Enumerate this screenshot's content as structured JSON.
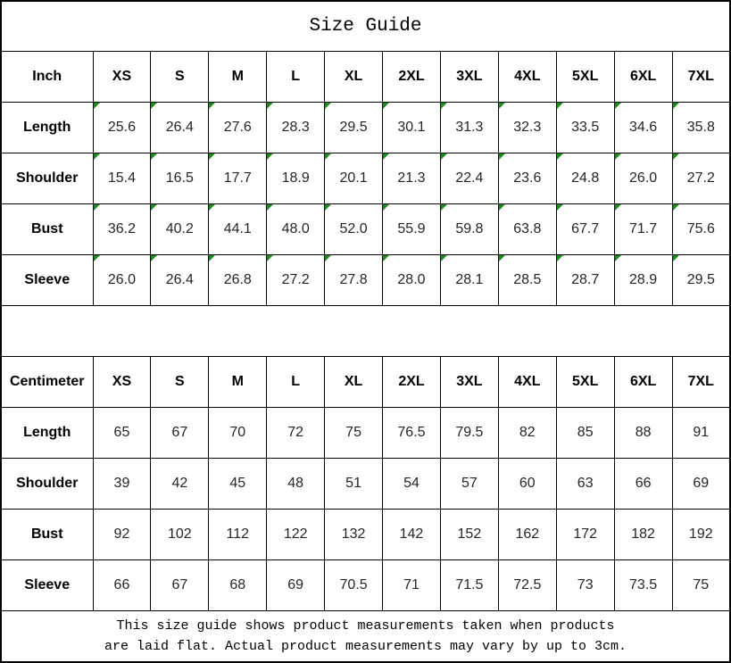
{
  "title": "Size Guide",
  "colors": {
    "border": "#000000",
    "corner_marker_green": "#1e8a1e",
    "background": "#ffffff"
  },
  "inch_table": {
    "unit_label": "Inch",
    "has_corner_markers": true,
    "sizes": [
      "XS",
      "S",
      "M",
      "L",
      "XL",
      "2XL",
      "3XL",
      "4XL",
      "5XL",
      "6XL",
      "7XL"
    ],
    "rows": [
      {
        "label": "Length",
        "values": [
          "25.6",
          "26.4",
          "27.6",
          "28.3",
          "29.5",
          "30.1",
          "31.3",
          "32.3",
          "33.5",
          "34.6",
          "35.8"
        ]
      },
      {
        "label": "Shoulder",
        "values": [
          "15.4",
          "16.5",
          "17.7",
          "18.9",
          "20.1",
          "21.3",
          "22.4",
          "23.6",
          "24.8",
          "26.0",
          "27.2"
        ]
      },
      {
        "label": "Bust",
        "values": [
          "36.2",
          "40.2",
          "44.1",
          "48.0",
          "52.0",
          "55.9",
          "59.8",
          "63.8",
          "67.7",
          "71.7",
          "75.6"
        ]
      },
      {
        "label": "Sleeve",
        "values": [
          "26.0",
          "26.4",
          "26.8",
          "27.2",
          "27.8",
          "28.0",
          "28.1",
          "28.5",
          "28.7",
          "28.9",
          "29.5"
        ]
      }
    ]
  },
  "cm_table": {
    "unit_label": "Centimeter",
    "has_corner_markers": false,
    "sizes": [
      "XS",
      "S",
      "M",
      "L",
      "XL",
      "2XL",
      "3XL",
      "4XL",
      "5XL",
      "6XL",
      "7XL"
    ],
    "rows": [
      {
        "label": "Length",
        "values": [
          "65",
          "67",
          "70",
          "72",
          "75",
          "76.5",
          "79.5",
          "82",
          "85",
          "88",
          "91"
        ]
      },
      {
        "label": "Shoulder",
        "values": [
          "39",
          "42",
          "45",
          "48",
          "51",
          "54",
          "57",
          "60",
          "63",
          "66",
          "69"
        ]
      },
      {
        "label": "Bust",
        "values": [
          "92",
          "102",
          "112",
          "122",
          "132",
          "142",
          "152",
          "162",
          "172",
          "182",
          "192"
        ]
      },
      {
        "label": "Sleeve",
        "values": [
          "66",
          "67",
          "68",
          "69",
          "70.5",
          "71",
          "71.5",
          "72.5",
          "73",
          "73.5",
          "75"
        ]
      }
    ]
  },
  "footer": {
    "line1": "This size guide shows product measurements taken when products",
    "line2": "are laid flat. Actual product measurements may vary by up to 3cm."
  }
}
